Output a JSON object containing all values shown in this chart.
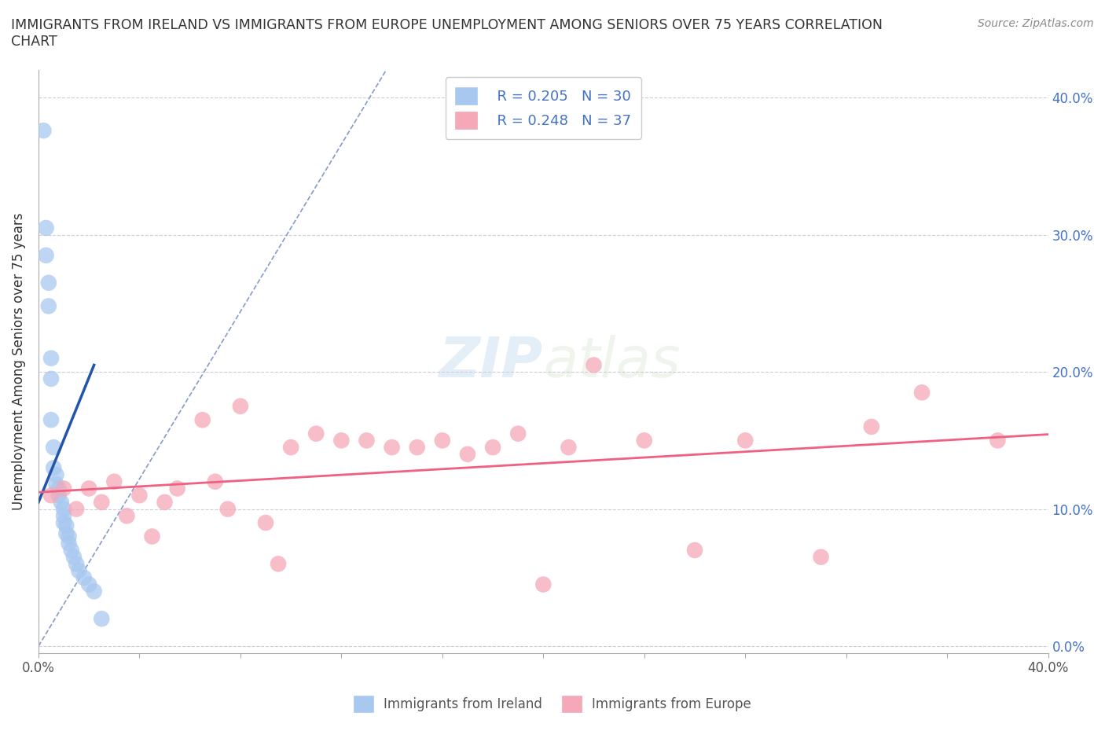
{
  "title": "IMMIGRANTS FROM IRELAND VS IMMIGRANTS FROM EUROPE UNEMPLOYMENT AMONG SENIORS OVER 75 YEARS CORRELATION\nCHART",
  "source": "Source: ZipAtlas.com",
  "ylabel": "Unemployment Among Seniors over 75 years",
  "xlim": [
    0.0,
    0.4
  ],
  "ylim": [
    -0.005,
    0.42
  ],
  "yticks": [
    0.0,
    0.1,
    0.2,
    0.3,
    0.4
  ],
  "ytick_labels_right": [
    "0.0%",
    "10.0%",
    "20.0%",
    "30.0%",
    "40.0%"
  ],
  "watermark": "ZIPatlas",
  "legend_ireland_R": "R = 0.205",
  "legend_ireland_N": "N = 30",
  "legend_europe_R": "R = 0.248",
  "legend_europe_N": "N = 37",
  "ireland_color": "#a8c8f0",
  "europe_color": "#f5a8b8",
  "ireland_line_color": "#2255aa",
  "europe_line_color": "#f06080",
  "diagonal_color": "#8899cc",
  "legend_text_color": "#4472c4",
  "ireland_x": [
    0.002,
    0.003,
    0.003,
    0.004,
    0.004,
    0.005,
    0.005,
    0.005,
    0.006,
    0.006,
    0.007,
    0.007,
    0.008,
    0.008,
    0.009,
    0.01,
    0.01,
    0.01,
    0.011,
    0.011,
    0.012,
    0.012,
    0.013,
    0.014,
    0.015,
    0.016,
    0.018,
    0.02,
    0.022,
    0.025
  ],
  "ireland_y": [
    0.376,
    0.305,
    0.285,
    0.265,
    0.248,
    0.21,
    0.195,
    0.165,
    0.145,
    0.13,
    0.125,
    0.118,
    0.115,
    0.11,
    0.105,
    0.1,
    0.095,
    0.09,
    0.088,
    0.082,
    0.08,
    0.075,
    0.07,
    0.065,
    0.06,
    0.055,
    0.05,
    0.045,
    0.04,
    0.02
  ],
  "europe_x": [
    0.005,
    0.01,
    0.015,
    0.02,
    0.025,
    0.03,
    0.035,
    0.04,
    0.045,
    0.05,
    0.055,
    0.065,
    0.07,
    0.075,
    0.08,
    0.09,
    0.095,
    0.1,
    0.11,
    0.12,
    0.13,
    0.14,
    0.15,
    0.16,
    0.17,
    0.18,
    0.19,
    0.2,
    0.21,
    0.22,
    0.24,
    0.26,
    0.28,
    0.31,
    0.33,
    0.35,
    0.38
  ],
  "europe_y": [
    0.11,
    0.115,
    0.1,
    0.115,
    0.105,
    0.12,
    0.095,
    0.11,
    0.08,
    0.105,
    0.115,
    0.165,
    0.12,
    0.1,
    0.175,
    0.09,
    0.06,
    0.145,
    0.155,
    0.15,
    0.15,
    0.145,
    0.145,
    0.15,
    0.14,
    0.145,
    0.155,
    0.045,
    0.145,
    0.205,
    0.15,
    0.07,
    0.15,
    0.065,
    0.16,
    0.185,
    0.15
  ]
}
